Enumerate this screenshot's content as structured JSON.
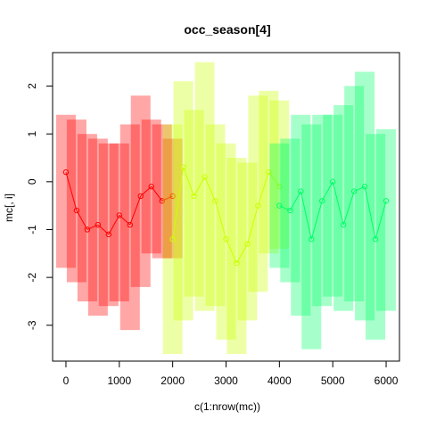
{
  "chart_data": {
    "type": "scatter",
    "title": "occ_season[4]",
    "xlabel": "c(1:nrow(mc))",
    "ylabel": "mc[, i]",
    "xlim": [
      -250,
      6250
    ],
    "ylim": [
      -3.75,
      2.7
    ],
    "x_ticks": [
      0,
      1000,
      2000,
      3000,
      4000,
      5000,
      6000
    ],
    "y_ticks": [
      -3,
      -2,
      -1,
      0,
      1,
      2
    ],
    "grid": false,
    "legend": "none",
    "marker": "open-circle",
    "series": [
      {
        "color": "#ff0000",
        "x": [
          0,
          200,
          400,
          600,
          800,
          1000,
          1200,
          1400,
          1600,
          1800,
          1999
        ],
        "y": [
          0.2,
          -0.6,
          -1.0,
          -0.9,
          -1.1,
          -0.7,
          -0.9,
          -0.3,
          -0.1,
          -0.4,
          -0.3
        ],
        "y_low": [
          -1.8,
          -2.1,
          -2.5,
          -2.8,
          -2.6,
          -2.5,
          -3.1,
          -2.2,
          -1.5,
          -1.6,
          -1.6
        ],
        "y_high": [
          1.4,
          1.3,
          1.0,
          0.9,
          0.8,
          0.8,
          1.2,
          1.8,
          1.3,
          1.2,
          0.9
        ]
      },
      {
        "color": "#ccff00",
        "x": [
          2000,
          2200,
          2400,
          2600,
          2800,
          3000,
          3200,
          3400,
          3600,
          3800,
          3999
        ],
        "y": [
          -1.2,
          0.3,
          -0.3,
          0.1,
          -0.4,
          -1.2,
          -1.7,
          -1.3,
          -0.5,
          0.2,
          -0.1
        ],
        "y_low": [
          -3.6,
          -2.9,
          -2.4,
          -2.7,
          -2.6,
          -3.3,
          -3.6,
          -2.9,
          -2.3,
          -1.5,
          -1.4
        ],
        "y_high": [
          1.2,
          2.1,
          1.5,
          2.5,
          1.2,
          0.8,
          0.5,
          0.4,
          1.8,
          1.9,
          1.7
        ]
      },
      {
        "color": "#00ff66",
        "x": [
          4000,
          4200,
          4400,
          4600,
          4800,
          5000,
          5200,
          5400,
          5600,
          5800,
          5999
        ],
        "y": [
          -0.5,
          -0.6,
          -0.2,
          -1.2,
          -0.4,
          0.0,
          -0.9,
          -0.2,
          -0.1,
          -1.2,
          -0.4
        ],
        "y_low": [
          -1.8,
          -2.1,
          -2.8,
          -3.5,
          -2.6,
          -2.4,
          -2.7,
          -2.5,
          -2.9,
          -3.3,
          -2.7
        ],
        "y_high": [
          0.8,
          0.9,
          1.4,
          1.2,
          1.4,
          1.4,
          1.6,
          2.0,
          2.3,
          1.0,
          1.1
        ]
      }
    ]
  }
}
